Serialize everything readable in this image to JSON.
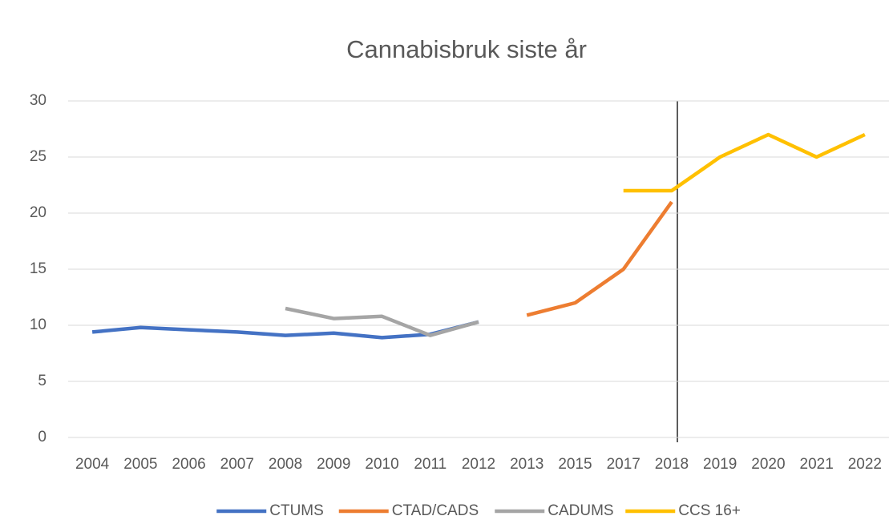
{
  "chart_data": {
    "type": "line",
    "title": "Cannabisbruk siste år",
    "categories": [
      "2004",
      "2005",
      "2006",
      "2007",
      "2008",
      "2009",
      "2010",
      "2011",
      "2012",
      "2013",
      "2015",
      "2017",
      "2018",
      "2019",
      "2020",
      "2021",
      "2022"
    ],
    "series": [
      {
        "name": "CTUMS",
        "color": "#4472c4",
        "values": [
          9.4,
          9.8,
          9.6,
          9.4,
          9.1,
          9.3,
          8.9,
          9.2,
          10.3,
          null,
          null,
          null,
          null,
          null,
          null,
          null,
          null
        ]
      },
      {
        "name": "CTAD/CADS",
        "color": "#ed7d31",
        "values": [
          null,
          null,
          null,
          null,
          null,
          null,
          null,
          null,
          null,
          10.9,
          12,
          15,
          21,
          null,
          null,
          null,
          null
        ]
      },
      {
        "name": "CADUMS",
        "color": "#a5a5a5",
        "values": [
          null,
          null,
          null,
          null,
          11.5,
          10.6,
          10.8,
          9.1,
          10.3,
          null,
          null,
          null,
          null,
          null,
          null,
          null,
          null
        ]
      },
      {
        "name": "CCS 16+",
        "color": "#ffc000",
        "values": [
          null,
          null,
          null,
          null,
          null,
          null,
          null,
          null,
          null,
          null,
          null,
          22,
          22,
          25,
          27,
          25,
          27
        ]
      }
    ],
    "ylim": [
      0,
      30
    ],
    "yticks": [
      0,
      5,
      10,
      15,
      20,
      25,
      30
    ],
    "grid": true,
    "legend": "bottom"
  }
}
